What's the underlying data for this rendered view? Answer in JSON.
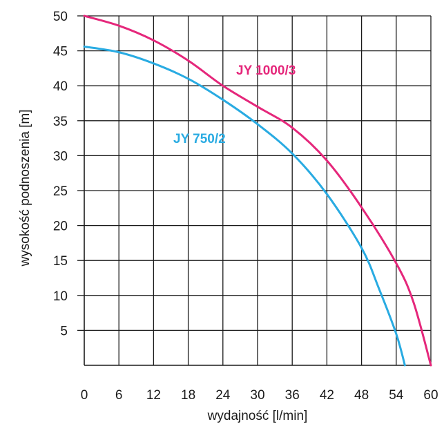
{
  "chart_data": {
    "type": "line",
    "xlabel": "wydajność [l/min]",
    "ylabel": "wysokość podnoszenia [m]",
    "xlim": [
      0,
      60
    ],
    "ylim": [
      0,
      50
    ],
    "x_ticks": [
      0,
      6,
      12,
      18,
      24,
      30,
      36,
      42,
      48,
      54,
      60
    ],
    "y_ticks": [
      5,
      10,
      15,
      20,
      25,
      30,
      35,
      40,
      45,
      50
    ],
    "grid": true,
    "legend": "none",
    "series": [
      {
        "name": "JY 1000/3",
        "color": "#e5277b",
        "x": [
          0,
          6,
          12,
          18,
          24,
          30,
          36,
          42,
          48,
          54,
          57,
          60
        ],
        "y": [
          50,
          48.6,
          46.5,
          43.6,
          40,
          37,
          34,
          29.3,
          22.6,
          14.6,
          9,
          0
        ]
      },
      {
        "name": "JY 750/2",
        "color": "#29abe2",
        "x": [
          0,
          6,
          12,
          18,
          24,
          30,
          36,
          42,
          48,
          51,
          54,
          55.5
        ],
        "y": [
          45.6,
          44.8,
          43.2,
          41,
          38,
          34.5,
          30.3,
          24.5,
          16.8,
          11,
          4.5,
          0
        ]
      }
    ]
  }
}
